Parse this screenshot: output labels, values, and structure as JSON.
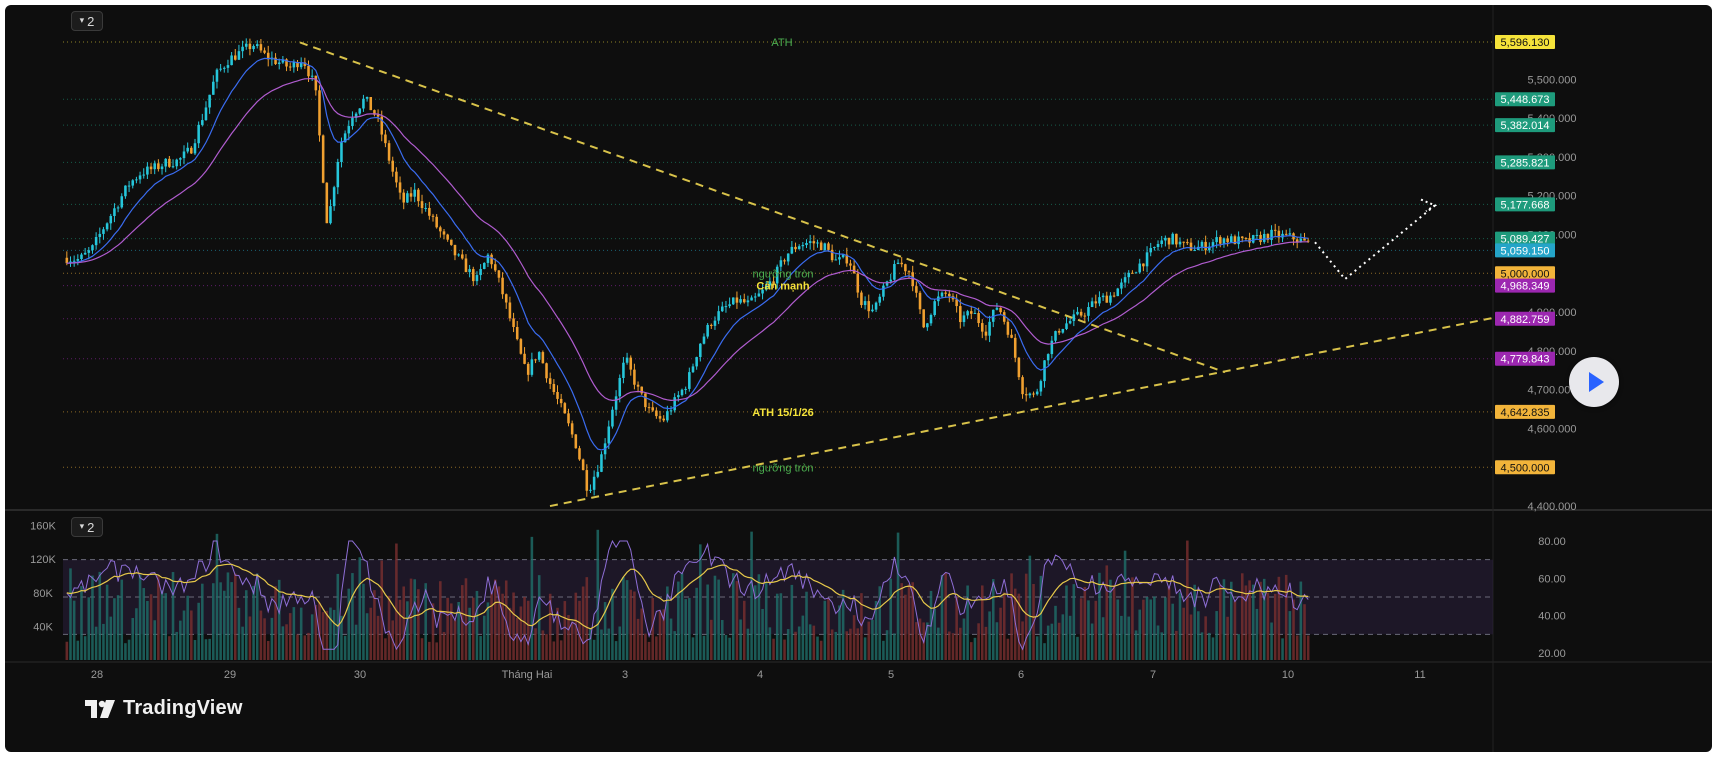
{
  "app": {
    "brand": "TradingView"
  },
  "toolbar": {
    "pane1_label": "2",
    "pane2_label": "2"
  },
  "chart_data": {
    "type": "candlestick",
    "price_axis": {
      "ticks": [
        "5,500.000",
        "5,400.000",
        "5,300.000",
        "5,200.000",
        "5,100.000",
        "4,900.000",
        "4,800.000",
        "4,700.000",
        "4,600.000",
        "4,400.000"
      ],
      "tick_values": [
        5500,
        5400,
        5300,
        5200,
        5100,
        4900,
        4800,
        4700,
        4600,
        4400
      ],
      "ylim": [
        4395,
        5640
      ]
    },
    "price_labels": [
      {
        "text": "5,596.130",
        "value": 5596.13,
        "color": "#f5e33a",
        "text_color": "#111111"
      },
      {
        "text": "5,448.673",
        "value": 5448.673,
        "color": "#1e9b7c",
        "text_color": "#ffffff"
      },
      {
        "text": "5,382.014",
        "value": 5382.014,
        "color": "#1e9b7c",
        "text_color": "#ffffff"
      },
      {
        "text": "5,285.821",
        "value": 5285.821,
        "color": "#1e9b7c",
        "text_color": "#ffffff"
      },
      {
        "text": "5,177.668",
        "value": 5177.668,
        "color": "#1e9b7c",
        "text_color": "#ffffff"
      },
      {
        "text": "5,089.427",
        "value": 5089.427,
        "color": "#1e9b7c",
        "text_color": "#ffffff"
      },
      {
        "text": "5,059.150",
        "value": 5059.15,
        "color": "#24a4c8",
        "text_color": "#ffffff"
      },
      {
        "text": "5,000.000",
        "value": 5000,
        "color": "#f2b43a",
        "text_color": "#111111"
      },
      {
        "text": "4,968.349",
        "value": 4968.349,
        "color": "#9c27b0",
        "text_color": "#ffffff"
      },
      {
        "text": "4,882.759",
        "value": 4882.759,
        "color": "#9c27b0",
        "text_color": "#ffffff"
      },
      {
        "text": "4,779.843",
        "value": 4779.843,
        "color": "#9c27b0",
        "text_color": "#ffffff"
      },
      {
        "text": "4,642.835",
        "value": 4642.835,
        "color": "#f2b43a",
        "text_color": "#111111"
      },
      {
        "text": "4,500.000",
        "value": 4500,
        "color": "#f2b43a",
        "text_color": "#111111"
      }
    ],
    "time_axis": {
      "labels": [
        "28",
        "29",
        "30",
        "Tháng Hai",
        "3",
        "4",
        "5",
        "6",
        "7",
        "10",
        "11"
      ]
    },
    "annotations": [
      {
        "text": "ATH",
        "color": "#4caf50"
      },
      {
        "text": "ngưỡng tròn",
        "color": "#4caf50"
      },
      {
        "text": "Cản mạnh",
        "color": "#f5e33a"
      },
      {
        "text": "ATH 15/1/26",
        "color": "#f5e33a"
      },
      {
        "text": "ngưỡng tròn",
        "color": "#4caf50"
      }
    ],
    "trendlines": [
      {
        "name": "descending-resistance",
        "from": [
          5595,
          "29"
        ],
        "to": [
          4745,
          "7"
        ]
      },
      {
        "name": "ascending-support",
        "from": [
          4400,
          "2"
        ],
        "to": [
          4885,
          "11"
        ]
      }
    ],
    "price_path_keypoints": [
      5040,
      5035,
      5060,
      5120,
      5175,
      5230,
      5260,
      5270,
      5285,
      5290,
      5320,
      5410,
      5510,
      5550,
      5570,
      5590,
      5560,
      5545,
      5530,
      5555,
      5480,
      5120,
      5330,
      5410,
      5450,
      5400,
      5290,
      5180,
      5210,
      5160,
      5110,
      5060,
      5020,
      4980,
      5050,
      4960,
      4850,
      4740,
      4800,
      4710,
      4640,
      4560,
      4440,
      4520,
      4660,
      4780,
      4700,
      4640,
      4620,
      4670,
      4720,
      4820,
      4880,
      4910,
      4930,
      4920,
      4950,
      4990,
      5050,
      5075,
      5080,
      5070,
      5030,
      5040,
      4930,
      4900,
      4970,
      5030,
      5000,
      4860,
      4930,
      4950,
      4880,
      4900,
      4850,
      4920,
      4840,
      4700,
      4680,
      4800,
      4860,
      4880,
      4900,
      4930,
      4940,
      4970,
      5010,
      5040,
      5080,
      5090,
      5070,
      5065,
      5075,
      5090,
      5085,
      5080,
      5090,
      5100,
      5095,
      5090,
      5075
    ],
    "ema_fast": {
      "color": "#3a6cf0"
    },
    "ema_slow": {
      "color": "#b05ccf"
    },
    "indicator_pane": {
      "volume_axis": {
        "ticks": [
          "160K",
          "120K",
          "80K",
          "40K"
        ],
        "values": [
          160,
          120,
          80,
          40
        ]
      },
      "rsi_axis": {
        "ticks": [
          "80.00",
          "60.00",
          "40.00",
          "20.00"
        ],
        "values": [
          80,
          60,
          40,
          20
        ]
      },
      "rsi_bands": [
        70,
        50,
        30
      ]
    }
  }
}
